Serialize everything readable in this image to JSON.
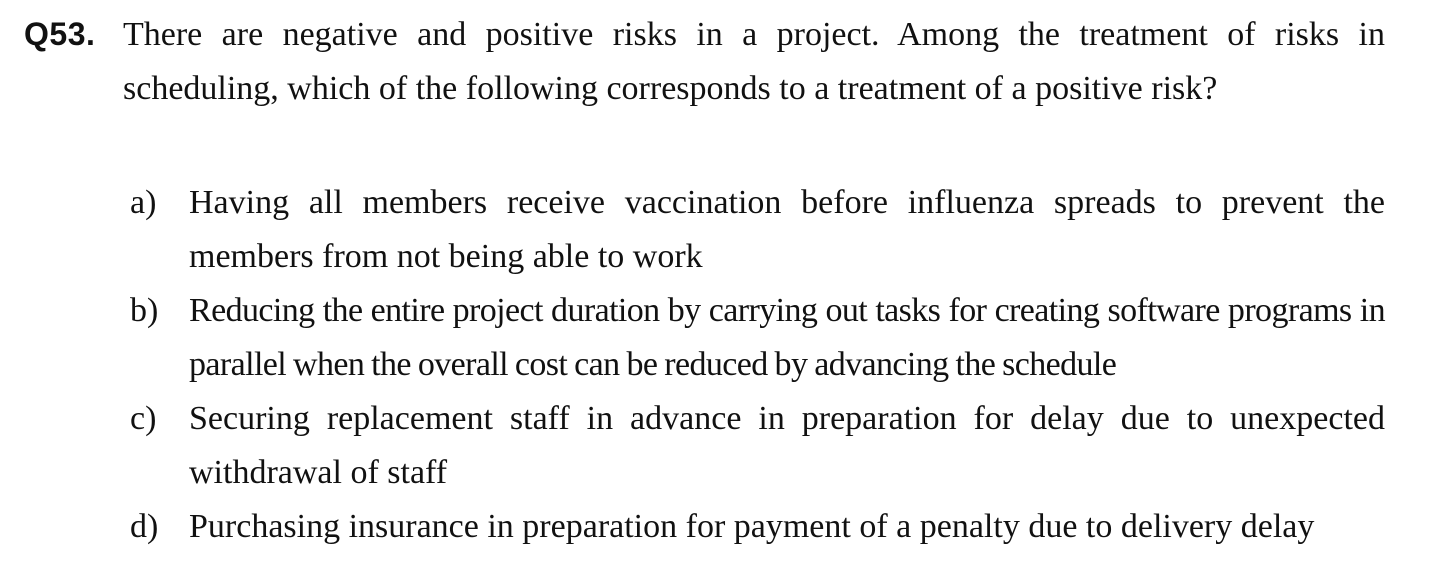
{
  "question": {
    "number": "Q53.",
    "text": "There are negative and positive risks in a project. Among the treatment of risks in scheduling, which of the following corresponds to a treatment of a positive risk?"
  },
  "options": [
    {
      "letter": "a)",
      "text": "Having all members receive vaccination before influenza spreads to prevent the members from not being able to work"
    },
    {
      "letter": "b)",
      "text": "Reducing the entire project duration by carrying out tasks for creating software programs in parallel when the overall cost can be reduced by advancing the schedule"
    },
    {
      "letter": "c)",
      "text": "Securing replacement staff in advance in preparation for delay due to unexpected withdrawal of staff"
    },
    {
      "letter": "d)",
      "text": "Purchasing insurance in preparation for payment of a penalty due to delivery delay"
    }
  ]
}
